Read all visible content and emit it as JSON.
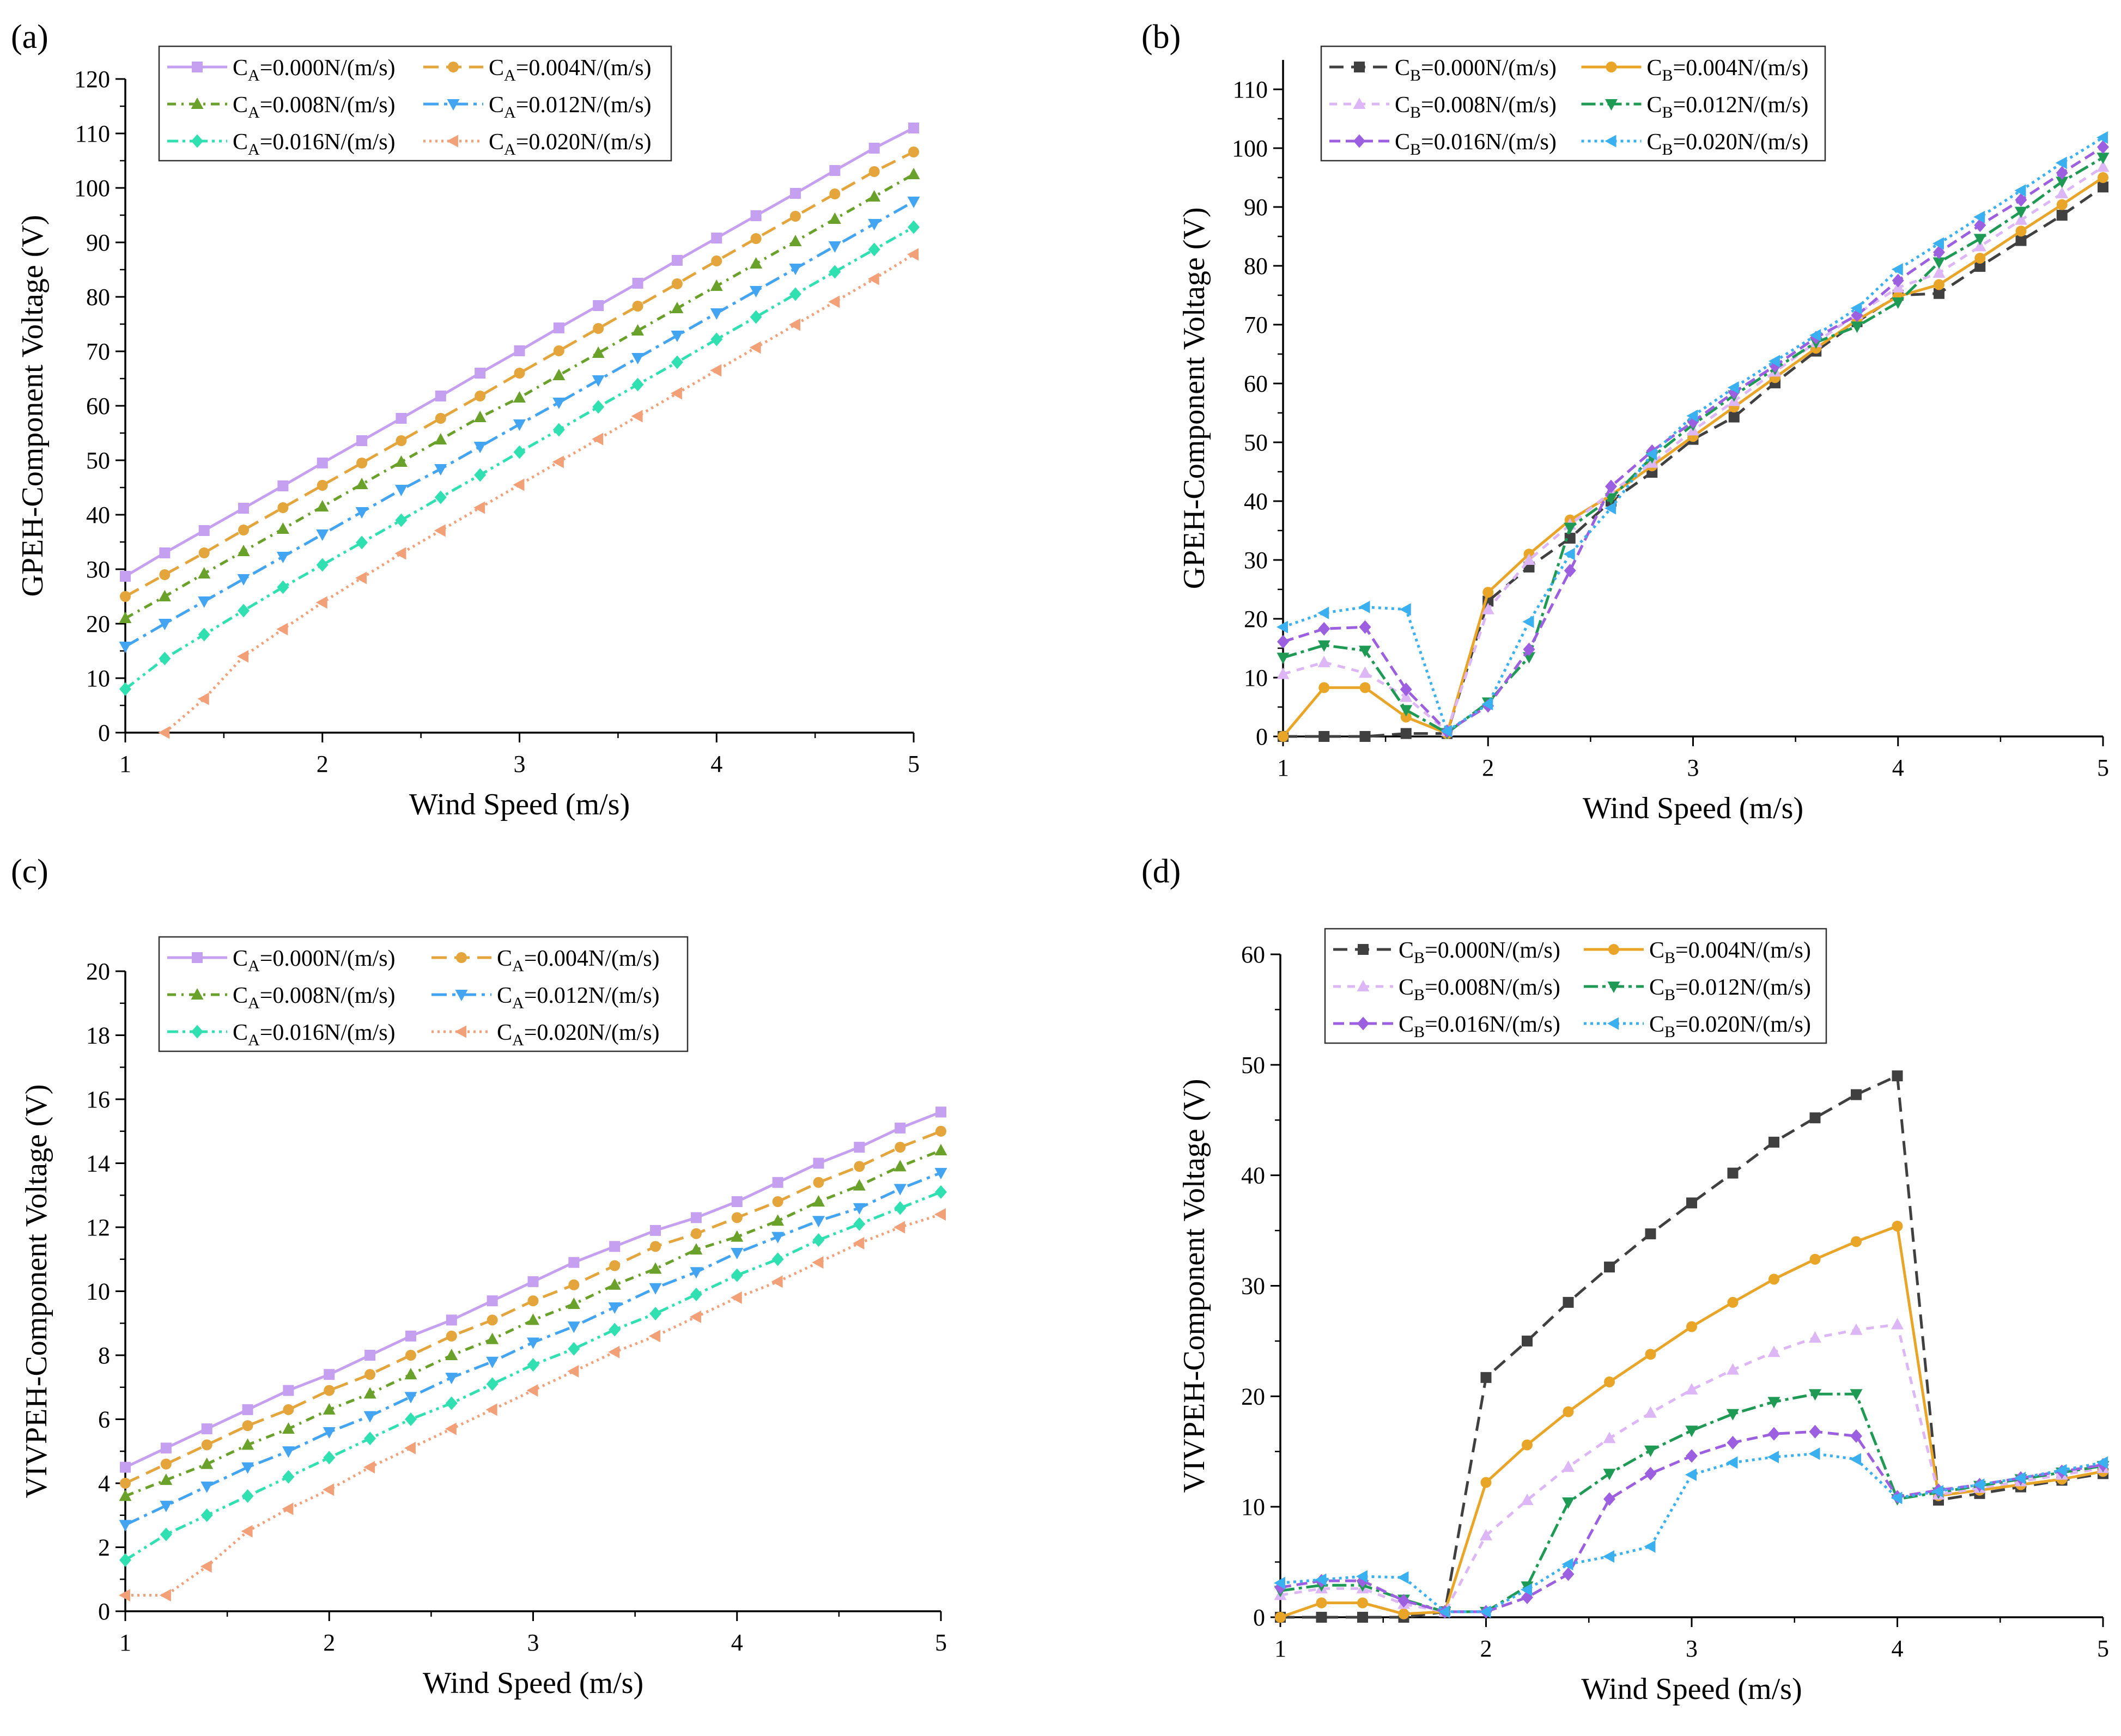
{
  "chart_data": [
    {
      "panel": "(a)",
      "type": "line",
      "xlabel": "Wind Speed (m/s)",
      "ylabel": "GPEH-Component Voltage (V)",
      "xlim": [
        1,
        5
      ],
      "ylim": [
        0,
        120
      ],
      "xticks": [
        1,
        2,
        3,
        4,
        5
      ],
      "yticks": [
        0,
        10,
        20,
        30,
        40,
        50,
        60,
        70,
        80,
        90,
        100,
        110,
        120
      ],
      "legend_sym": "A",
      "x": [
        1.0,
        1.2,
        1.4,
        1.6,
        1.8,
        2.0,
        2.2,
        2.4,
        2.6,
        2.8,
        3.0,
        3.2,
        3.4,
        3.6,
        3.8,
        4.0,
        4.2,
        4.4,
        4.6,
        4.8,
        5.0
      ],
      "series": [
        {
          "name": "=0.000N/(m/s)",
          "style": 0,
          "values": [
            28.7,
            33,
            37.1,
            41.2,
            45.3,
            49.5,
            53.6,
            57.7,
            61.8,
            66,
            70.1,
            74.3,
            78.4,
            82.5,
            86.7,
            90.8,
            94.9,
            99,
            103.2,
            107.3,
            111
          ]
        },
        {
          "name": "=0.004N/(m/s)",
          "style": 1,
          "values": [
            25,
            29,
            33,
            37.2,
            41.3,
            45.4,
            49.5,
            53.6,
            57.7,
            61.8,
            66,
            70.1,
            74.2,
            78.3,
            82.4,
            86.6,
            90.7,
            94.8,
            98.9,
            103,
            106.6
          ]
        },
        {
          "name": "=0.008N/(m/s)",
          "style": 2,
          "values": [
            21,
            25,
            29.2,
            33.3,
            37.4,
            41.5,
            45.6,
            49.7,
            53.8,
            57.9,
            61.5,
            65.6,
            69.7,
            73.8,
            77.9,
            82,
            86.1,
            90.2,
            94.3,
            98.4,
            102.5
          ]
        },
        {
          "name": "=0.012N/(m/s)",
          "style": 3,
          "values": [
            15.8,
            20,
            24.1,
            28.2,
            32.3,
            36.4,
            40.5,
            44.6,
            48.4,
            52.5,
            56.6,
            60.6,
            64.7,
            68.8,
            72.9,
            77,
            81.1,
            85.2,
            89.3,
            93.4,
            97.5
          ]
        },
        {
          "name": "=0.016N/(m/s)",
          "style": 4,
          "values": [
            8,
            13.6,
            18,
            22.4,
            26.7,
            30.8,
            34.9,
            39,
            43.2,
            47.3,
            51.5,
            55.6,
            59.8,
            63.9,
            68,
            72.2,
            76.3,
            80.5,
            84.6,
            88.7,
            92.8
          ]
        },
        {
          "name": "=0.020N/(m/s)",
          "style": 5,
          "values": [
            null,
            0,
            6.2,
            14,
            19,
            23.9,
            28.4,
            32.9,
            37.1,
            41.3,
            45.5,
            49.7,
            53.9,
            58.1,
            62.3,
            66.5,
            70.7,
            74.9,
            79.1,
            83.3,
            87.8
          ]
        }
      ]
    },
    {
      "panel": "(b)",
      "type": "line",
      "xlabel": "Wind Speed (m/s)",
      "ylabel": "GPEH-Component Voltage (V)",
      "xlim": [
        1,
        5
      ],
      "ylim": [
        0,
        115
      ],
      "xticks": [
        1,
        2,
        3,
        4,
        5
      ],
      "yticks": [
        0,
        10,
        20,
        30,
        40,
        50,
        60,
        70,
        80,
        90,
        100,
        110
      ],
      "legend_sym": "B",
      "x": [
        1.0,
        1.2,
        1.4,
        1.6,
        1.8,
        2.0,
        2.2,
        2.4,
        2.6,
        2.8,
        3.0,
        3.2,
        3.4,
        3.6,
        3.8,
        4.0,
        4.2,
        4.4,
        4.6,
        4.8,
        5.0
      ],
      "series": [
        {
          "name": "=0.000N/(m/s)",
          "style": 6,
          "values": [
            0,
            0,
            0,
            0.5,
            0.5,
            23,
            28.8,
            33.7,
            40,
            44.9,
            50.5,
            54.3,
            60.1,
            65.5,
            70.5,
            75,
            75.3,
            79.9,
            84.3,
            88.6,
            93.4
          ]
        },
        {
          "name": "=0.004N/(m/s)",
          "style": 7,
          "values": [
            0,
            8.3,
            8.3,
            3.3,
            0.5,
            24.5,
            31,
            36.8,
            41,
            46,
            51,
            56,
            61,
            66,
            70.8,
            74.8,
            76.8,
            81.3,
            85.9,
            90.4,
            95
          ]
        },
        {
          "name": "=0.008N/(m/s)",
          "style": 8,
          "values": [
            10.6,
            12.6,
            10.8,
            6.7,
            0.9,
            21.6,
            30,
            36,
            41.5,
            46.5,
            52,
            57,
            62,
            67,
            71.8,
            76.3,
            78.8,
            83.3,
            87.8,
            92.3,
            96.8
          ]
        },
        {
          "name": "=0.012N/(m/s)",
          "style": 9,
          "values": [
            13.4,
            15.5,
            14.6,
            4.5,
            0.6,
            5.8,
            13.5,
            35.5,
            40.5,
            47.5,
            53,
            58,
            62.5,
            67,
            69.7,
            73.8,
            80.6,
            84.6,
            89.2,
            94.3,
            98.4
          ]
        },
        {
          "name": "=0.016N/(m/s)",
          "style": 10,
          "values": [
            16.1,
            18.3,
            18.6,
            8,
            0.9,
            5.2,
            14.8,
            28.2,
            42.5,
            48.5,
            53.5,
            58.5,
            63,
            67.8,
            71.6,
            77.5,
            82.3,
            86.9,
            91.2,
            95.8,
            100.2
          ]
        },
        {
          "name": "=0.020N/(m/s)",
          "style": 11,
          "values": [
            18.6,
            21,
            22,
            21.6,
            0.9,
            5.5,
            19.5,
            31,
            38.8,
            48,
            54.5,
            59.3,
            63.8,
            68.2,
            72.8,
            79.4,
            83.8,
            88.3,
            92.8,
            97.5,
            101.8
          ]
        }
      ]
    },
    {
      "panel": "(c)",
      "type": "line",
      "xlabel": "Wind Speed (m/s)",
      "ylabel": "VIVPEH-Component Voltage (V)",
      "xlim": [
        1,
        5
      ],
      "ylim": [
        0,
        20
      ],
      "xticks": [
        1,
        2,
        3,
        4,
        5
      ],
      "yticks": [
        0,
        2,
        4,
        6,
        8,
        10,
        12,
        14,
        16,
        18,
        20
      ],
      "legend_sym": "A",
      "x": [
        1.0,
        1.2,
        1.4,
        1.6,
        1.8,
        2.0,
        2.2,
        2.4,
        2.6,
        2.8,
        3.0,
        3.2,
        3.4,
        3.6,
        3.8,
        4.0,
        4.2,
        4.4,
        4.6,
        4.8,
        5.0
      ],
      "series": [
        {
          "name": "=0.000N/(m/s)",
          "style": 0,
          "values": [
            4.5,
            5.1,
            5.7,
            6.3,
            6.9,
            7.4,
            8,
            8.6,
            9.1,
            9.7,
            10.3,
            10.9,
            11.4,
            11.9,
            12.3,
            12.8,
            13.4,
            14,
            14.5,
            15.1,
            15.6
          ]
        },
        {
          "name": "=0.004N/(m/s)",
          "style": 1,
          "values": [
            4,
            4.6,
            5.2,
            5.8,
            6.3,
            6.9,
            7.4,
            8,
            8.6,
            9.1,
            9.7,
            10.2,
            10.8,
            11.4,
            11.8,
            12.3,
            12.8,
            13.4,
            13.9,
            14.5,
            15
          ]
        },
        {
          "name": "=0.008N/(m/s)",
          "style": 2,
          "values": [
            3.6,
            4.1,
            4.6,
            5.2,
            5.7,
            6.3,
            6.8,
            7.4,
            8,
            8.5,
            9.1,
            9.6,
            10.2,
            10.7,
            11.3,
            11.7,
            12.2,
            12.8,
            13.3,
            13.9,
            14.4
          ]
        },
        {
          "name": "=0.012N/(m/s)",
          "style": 3,
          "values": [
            2.7,
            3.3,
            3.9,
            4.5,
            5,
            5.6,
            6.1,
            6.7,
            7.3,
            7.8,
            8.4,
            8.9,
            9.5,
            10.1,
            10.6,
            11.2,
            11.7,
            12.2,
            12.6,
            13.2,
            13.7
          ]
        },
        {
          "name": "=0.016N/(m/s)",
          "style": 4,
          "values": [
            1.6,
            2.4,
            3,
            3.6,
            4.2,
            4.8,
            5.4,
            6,
            6.5,
            7.1,
            7.7,
            8.2,
            8.8,
            9.3,
            9.9,
            10.5,
            11,
            11.6,
            12.1,
            12.6,
            13.1
          ]
        },
        {
          "name": "=0.020N/(m/s)",
          "style": 5,
          "values": [
            0.5,
            0.5,
            1.4,
            2.5,
            3.2,
            3.8,
            4.5,
            5.1,
            5.7,
            6.3,
            6.9,
            7.5,
            8.1,
            8.6,
            9.2,
            9.8,
            10.3,
            10.9,
            11.5,
            12,
            12.4
          ]
        }
      ]
    },
    {
      "panel": "(d)",
      "type": "line",
      "xlabel": "Wind Speed (m/s)",
      "ylabel": "VIVPEH-Component Voltage (V)",
      "xlim": [
        1,
        5
      ],
      "ylim": [
        0,
        60
      ],
      "xticks": [
        1,
        2,
        3,
        4,
        5
      ],
      "yticks": [
        0,
        10,
        20,
        30,
        40,
        50,
        60
      ],
      "legend_sym": "B",
      "x": [
        1.0,
        1.2,
        1.4,
        1.6,
        1.8,
        2.0,
        2.2,
        2.4,
        2.6,
        2.8,
        3.0,
        3.2,
        3.4,
        3.6,
        3.8,
        4.0,
        4.2,
        4.4,
        4.6,
        4.8,
        5.0
      ],
      "series": [
        {
          "name": "=0.000N/(m/s)",
          "style": 6,
          "values": [
            0,
            0,
            0,
            0,
            0.5,
            21.7,
            25,
            28.5,
            31.7,
            34.7,
            37.5,
            40.2,
            43,
            45.2,
            47.3,
            49,
            10.6,
            11.2,
            11.8,
            12.4,
            13
          ]
        },
        {
          "name": "=0.004N/(m/s)",
          "style": 7,
          "values": [
            0,
            1.3,
            1.3,
            0.3,
            0.5,
            12.2,
            15.6,
            18.6,
            21.3,
            23.8,
            26.3,
            28.5,
            30.6,
            32.4,
            34,
            35.4,
            11,
            11.5,
            12,
            12.5,
            13.2
          ]
        },
        {
          "name": "=0.008N/(m/s)",
          "style": 8,
          "values": [
            2,
            2.6,
            2.6,
            1.2,
            0.5,
            7.4,
            10.6,
            13.6,
            16.2,
            18.5,
            20.6,
            22.4,
            24,
            25.3,
            26,
            26.5,
            11.1,
            11.7,
            12.3,
            12.9,
            13.5
          ]
        },
        {
          "name": "=0.012N/(m/s)",
          "style": 9,
          "values": [
            2.4,
            2.9,
            2.9,
            1.6,
            0.5,
            0.5,
            2.8,
            10.4,
            13,
            15.1,
            16.9,
            18.4,
            19.5,
            20.2,
            20.2,
            10.7,
            11.3,
            11.9,
            12.5,
            13.1,
            13.7
          ]
        },
        {
          "name": "=0.016N/(m/s)",
          "style": 10,
          "values": [
            2.7,
            3.3,
            3.3,
            1.5,
            0.5,
            0.5,
            1.8,
            3.9,
            10.7,
            13,
            14.6,
            15.8,
            16.6,
            16.8,
            16.4,
            10.9,
            11.5,
            12,
            12.6,
            13.2,
            13.8
          ]
        },
        {
          "name": "=0.020N/(m/s)",
          "style": 11,
          "values": [
            3.1,
            3.4,
            3.7,
            3.6,
            0.5,
            0.5,
            2.5,
            4.8,
            5.5,
            6.4,
            12.9,
            14,
            14.5,
            14.8,
            14.3,
            10.8,
            11.4,
            12,
            12.6,
            13.3,
            14
          ]
        }
      ]
    }
  ]
}
